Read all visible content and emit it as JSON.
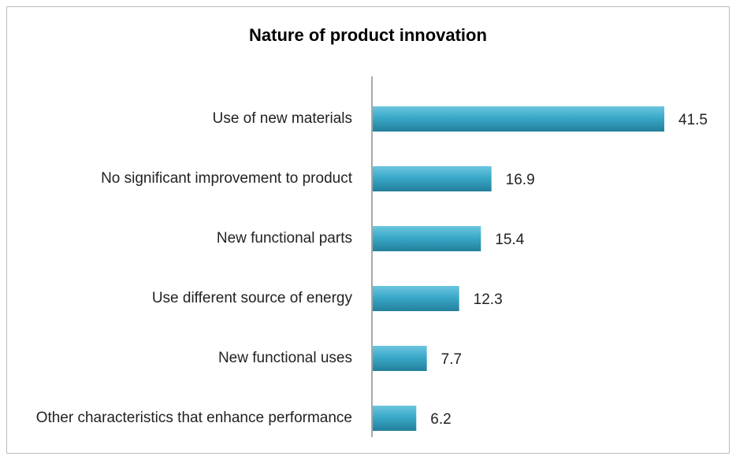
{
  "chart_data": {
    "type": "bar",
    "orientation": "horizontal",
    "title": "Nature of product innovation",
    "categories": [
      "Use of new materials",
      "No significant improvement to product",
      "New functional parts",
      "Use different source of energy",
      "New functional uses",
      "Other characteristics that enhance performance"
    ],
    "values": [
      41.5,
      16.9,
      15.4,
      12.3,
      7.7,
      6.2
    ],
    "color": "#3aa9c9"
  }
}
